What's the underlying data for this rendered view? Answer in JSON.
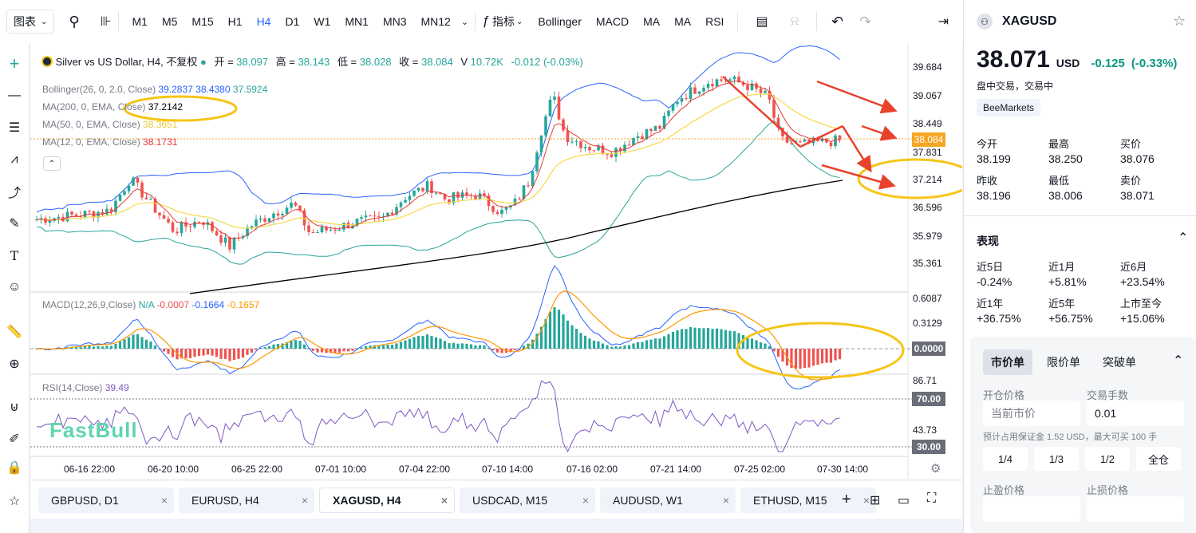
{
  "toolbar": {
    "chart_menu": "图表",
    "timeframes": [
      "M1",
      "M5",
      "M15",
      "H1",
      "H4",
      "D1",
      "W1",
      "MN1",
      "MN3",
      "MN12"
    ],
    "active_timeframe": "H4",
    "indicators_label": "指标",
    "indicator_buttons": [
      "Bollinger",
      "MACD",
      "MA",
      "MA",
      "RSI"
    ]
  },
  "legend": {
    "title": "Silver vs US Dollar, H4, 不复权",
    "open_label": "开",
    "open": "38.097",
    "high_label": "高",
    "high": "38.143",
    "low_label": "低",
    "low": "38.028",
    "close_label": "收",
    "close": "38.084",
    "volume_label": "V",
    "volume": "10.72K",
    "change": "-0.012 (-0.03%)",
    "bollinger": {
      "name": "Bollinger(26, 0, 2.0, Close)",
      "v1": "39.2837",
      "v2": "38.4380",
      "v3": "37.5924"
    },
    "ma200": {
      "name": "MA(200, 0, EMA, Close)",
      "value": "37.2142"
    },
    "ma50": {
      "name": "MA(50, 0, EMA, Close)",
      "value": "38.3651"
    },
    "ma12": {
      "name": "MA(12, 0, EMA, Close)",
      "value": "38.1731"
    }
  },
  "price_axis": [
    "39.684",
    "39.067",
    "38.449",
    "37.831",
    "37.214",
    "36.596",
    "35.979",
    "35.361"
  ],
  "current_price_tag": "38.084",
  "macd": {
    "name": "MACD(12,26,9,Close)",
    "na": "N/A",
    "v1": "-0.0007",
    "v2": "-0.1664",
    "v3": "-0.1657",
    "axis": [
      "0.6087",
      "0.3129"
    ],
    "zero_tag": "0.0000"
  },
  "rsi": {
    "name": "RSI(14,Close)",
    "value": "39.49",
    "axis_top": "86.71",
    "level70": "70.00",
    "axis_mid": "43.73",
    "level30": "30.00"
  },
  "time_axis": [
    "06-16 22:00",
    "06-20 10:00",
    "06-25 22:00",
    "07-01 10:00",
    "07-04 22:00",
    "07-10 14:00",
    "07-16 02:00",
    "07-21 14:00",
    "07-25 02:00",
    "07-30 14:00"
  ],
  "watermark": "FastBull",
  "tabs": [
    {
      "label": "GBPUSD, D1"
    },
    {
      "label": "EURUSD, H4"
    },
    {
      "label": "XAGUSD, H4"
    },
    {
      "label": "USDCAD, M15"
    },
    {
      "label": "AUDUSD, W1"
    },
    {
      "label": "ETHUSD, M15"
    }
  ],
  "side": {
    "symbol": "XAGUSD",
    "price": "38.071",
    "currency": "USD",
    "change": "-0.125",
    "change_pct": "(-0.33%)",
    "status": "盘中交易，交易中",
    "broker": "BeeMarkets",
    "quotes": [
      {
        "k": "今开",
        "v": "38.199"
      },
      {
        "k": "最高",
        "v": "38.250"
      },
      {
        "k": "买价",
        "v": "38.076"
      },
      {
        "k": "昨收",
        "v": "38.196"
      },
      {
        "k": "最低",
        "v": "38.006"
      },
      {
        "k": "卖价",
        "v": "38.071"
      }
    ],
    "perf_title": "表现",
    "perf": [
      {
        "k": "近5日",
        "v": "-0.24%"
      },
      {
        "k": "近1月",
        "v": "+5.81%"
      },
      {
        "k": "近6月",
        "v": "+23.54%"
      },
      {
        "k": "近1年",
        "v": "+36.75%"
      },
      {
        "k": "近5年",
        "v": "+56.75%"
      },
      {
        "k": "上市至今",
        "v": "+15.06%"
      }
    ],
    "order_tabs": [
      "市价单",
      "限价单",
      "突破单"
    ],
    "open_price_label": "开仓价格",
    "lots_label": "交易手数",
    "open_price_value": "当前市价",
    "lots_value": "0.01",
    "margin_note": "预计占用保证金 1.52 USD，最大可买 100 手",
    "fractions": [
      "1/4",
      "1/3",
      "1/2",
      "全仓"
    ],
    "tp_label": "止盈价格",
    "sl_label": "止损价格"
  },
  "colors": {
    "up": "#26a69a",
    "down": "#ef5350",
    "boll": "#2962ff",
    "ma200": "#000000",
    "ma50": "#f5d94a",
    "ma12": "#e53935",
    "macd": "#2962ff",
    "signal": "#ff9800",
    "rsi": "#7e57c2",
    "annot_red": "#e8412c",
    "annot_yellow": "#f5c518",
    "accent": "#2962ff",
    "side_down": "#089981"
  }
}
